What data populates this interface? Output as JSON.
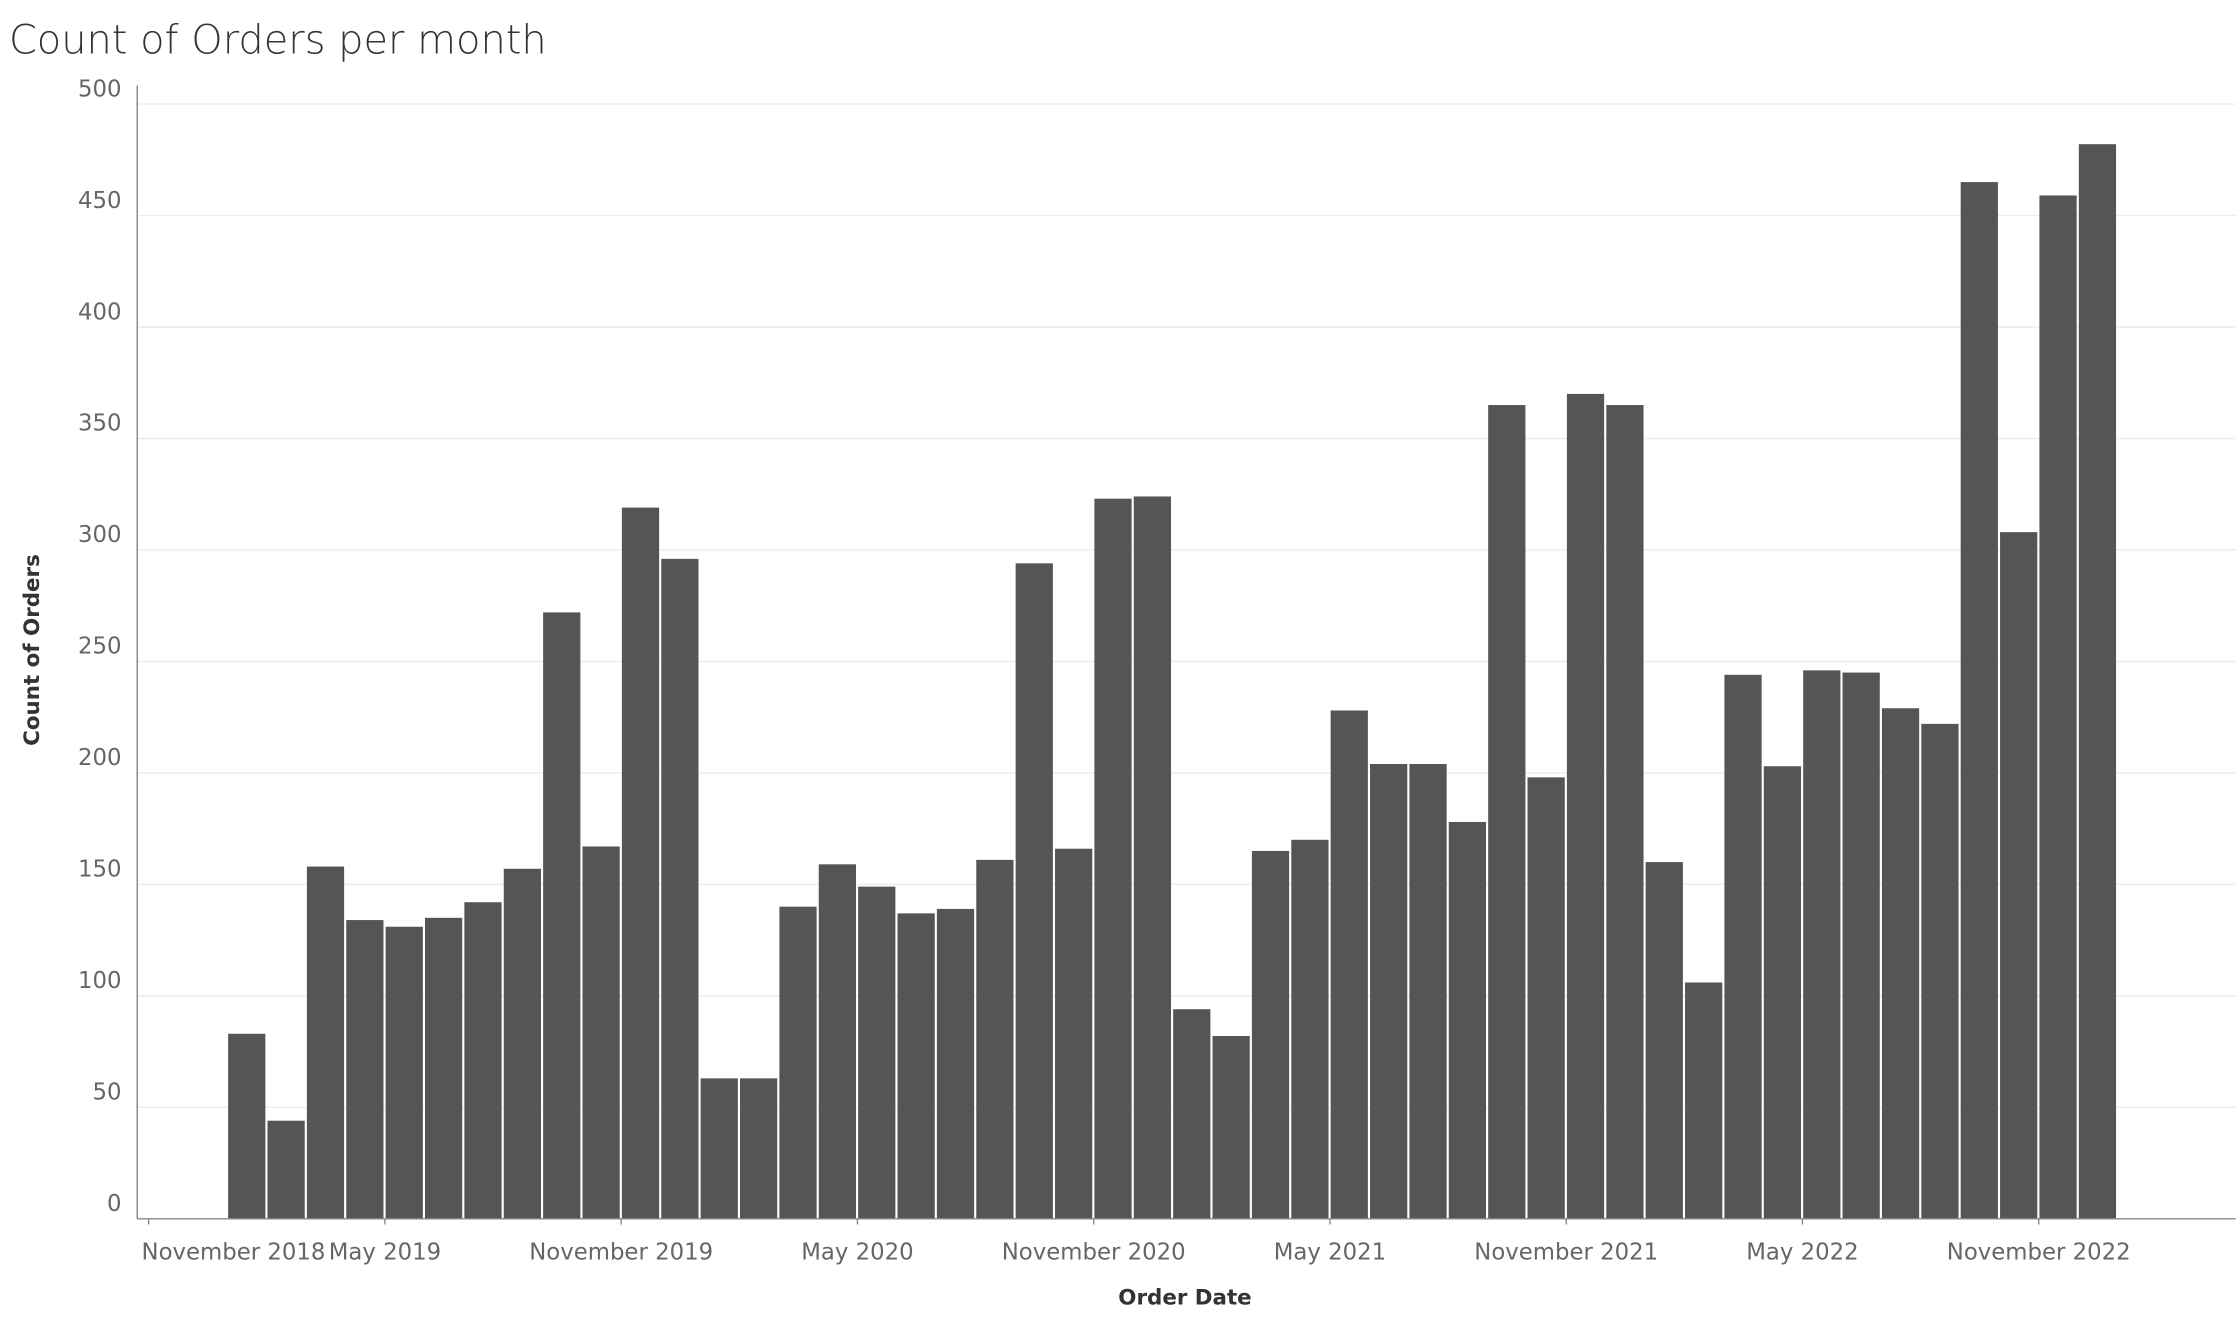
{
  "chart_data": {
    "type": "bar",
    "title": "Count of Orders per month",
    "x_label": "Order Date",
    "y_label": "Count of Orders",
    "color": "#555555",
    "grid": true,
    "x": [
      "2019-01",
      "2019-02",
      "2019-03",
      "2019-04",
      "2019-05",
      "2019-06",
      "2019-07",
      "2019-08",
      "2019-09",
      "2019-10",
      "2019-11",
      "2019-12",
      "2020-01",
      "2020-02",
      "2020-03",
      "2020-04",
      "2020-05",
      "2020-06",
      "2020-07",
      "2020-08",
      "2020-09",
      "2020-10",
      "2020-11",
      "2020-12",
      "2021-01",
      "2021-02",
      "2021-03",
      "2021-04",
      "2021-05",
      "2021-06",
      "2021-07",
      "2021-08",
      "2021-09",
      "2021-10",
      "2021-11",
      "2021-12",
      "2022-01",
      "2022-02",
      "2022-03",
      "2022-04",
      "2022-05",
      "2022-06",
      "2022-07",
      "2022-08",
      "2022-09",
      "2022-10",
      "2022-11",
      "2022-12"
    ],
    "values": [
      83,
      44,
      158,
      134,
      131,
      135,
      142,
      157,
      272,
      167,
      319,
      296,
      63,
      63,
      140,
      159,
      149,
      137,
      139,
      161,
      294,
      166,
      323,
      324,
      94,
      82,
      165,
      170,
      228,
      204,
      204,
      178,
      365,
      198,
      370,
      365,
      160,
      106,
      244,
      203,
      246,
      245,
      229,
      222,
      465,
      308,
      459,
      482
    ],
    "xlim": [
      "2018-11",
      "2023-04"
    ],
    "xticks": [
      {
        "value": "2018-11",
        "label": "November 2018"
      },
      {
        "value": "2019-05",
        "label": "May 2019"
      },
      {
        "value": "2019-11",
        "label": "November 2019"
      },
      {
        "value": "2020-05",
        "label": "May 2020"
      },
      {
        "value": "2020-11",
        "label": "November 2020"
      },
      {
        "value": "2021-05",
        "label": "May 2021"
      },
      {
        "value": "2021-11",
        "label": "November 2021"
      },
      {
        "value": "2022-05",
        "label": "May 2022"
      },
      {
        "value": "2022-11",
        "label": "November 2022"
      }
    ],
    "ylim": [
      0,
      500
    ],
    "yticks": [
      0,
      50,
      100,
      150,
      200,
      250,
      300,
      350,
      400,
      450,
      500
    ]
  }
}
